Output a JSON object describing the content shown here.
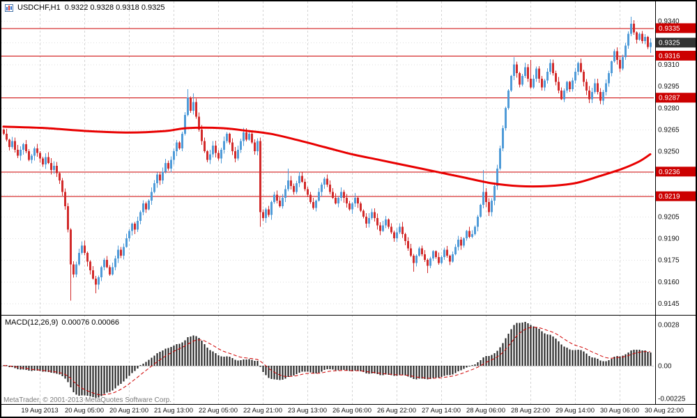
{
  "header": {
    "symbol_period": "USDCHF,H1",
    "quote_line": "0.9322 0.9328 0.9318 0.9325"
  },
  "macd": {
    "name": "MACD(12,26,9)",
    "values": "0.00076 0.00066"
  },
  "footer": {
    "copyright": "MetaTrader, © 2001-2013 MetaQuotes Software Corp."
  },
  "colors": {
    "up": "#4f9bd8",
    "down": "#d22a2a",
    "ma": "#e80000",
    "level_line": "#cc0000",
    "grid": "#d4d4d4",
    "histogram": "#1a1a1a",
    "signal": "#d00000",
    "level_tag_bg": "#cc0000",
    "current_tag_bg": "#333333",
    "axis_text": "#111111",
    "border": "#000000"
  },
  "chart_data": [
    {
      "type": "candlestick",
      "symbol": "USDCHF",
      "timeframe": "H1",
      "current_ohlc": {
        "open": 0.9322,
        "high": 0.9328,
        "low": 0.9318,
        "close": 0.9325
      },
      "ylim": [
        0.9145,
        0.934
      ],
      "grid_step": 0.0015,
      "y_grid_values": [
        0.934,
        0.9325,
        0.931,
        0.9295,
        0.928,
        0.9265,
        0.925,
        0.9235,
        0.922,
        0.9205,
        0.919,
        0.9175,
        0.916,
        0.9145
      ],
      "y_axis_labels": [
        "0.9340",
        "0.9310",
        "0.9295",
        "0.9280",
        "0.9265",
        "0.9250",
        "0.9205",
        "0.9190",
        "0.9175",
        "0.9160",
        "0.9145"
      ],
      "level_lines": [
        {
          "value": 0.9335,
          "label": "0.9335"
        },
        {
          "value": 0.9316,
          "label": "0.9316"
        },
        {
          "value": 0.9287,
          "label": "0.9287"
        },
        {
          "value": 0.9236,
          "label": "0.9236"
        },
        {
          "value": 0.9219,
          "label": "0.9219"
        }
      ],
      "current_price_tag": {
        "value": 0.9325,
        "label": "0.9325"
      },
      "first_open": 0.9265,
      "closes": [
        0.9262,
        0.9258,
        0.9253,
        0.9257,
        0.9251,
        0.9247,
        0.9251,
        0.9255,
        0.925,
        0.9244,
        0.9247,
        0.9252,
        0.9249,
        0.9245,
        0.9241,
        0.9246,
        0.9242,
        0.9237,
        0.924,
        0.9235,
        0.923,
        0.9222,
        0.9212,
        0.9196,
        0.9172,
        0.9165,
        0.9172,
        0.918,
        0.9185,
        0.918,
        0.9174,
        0.9168,
        0.9162,
        0.9158,
        0.9163,
        0.917,
        0.9175,
        0.917,
        0.9165,
        0.917,
        0.9176,
        0.9182,
        0.9178,
        0.9184,
        0.919,
        0.9195,
        0.92,
        0.9196,
        0.9202,
        0.9208,
        0.9214,
        0.921,
        0.9216,
        0.9222,
        0.9228,
        0.9234,
        0.923,
        0.9236,
        0.9242,
        0.9238,
        0.9244,
        0.925,
        0.9256,
        0.9252,
        0.9262,
        0.9275,
        0.9287,
        0.9278,
        0.9284,
        0.9274,
        0.9265,
        0.9257,
        0.925,
        0.9244,
        0.9248,
        0.9254,
        0.9249,
        0.9245,
        0.9251,
        0.9257,
        0.9262,
        0.9256,
        0.925,
        0.9245,
        0.9251,
        0.9257,
        0.9263,
        0.9258,
        0.9262,
        0.9256,
        0.925,
        0.9257,
        0.9208,
        0.9204,
        0.921,
        0.9206,
        0.9215,
        0.922,
        0.9216,
        0.9212,
        0.9218,
        0.9224,
        0.923,
        0.9226,
        0.9222,
        0.9228,
        0.9233,
        0.9229,
        0.9224,
        0.922,
        0.9215,
        0.9211,
        0.9216,
        0.9222,
        0.9227,
        0.9231,
        0.9227,
        0.9222,
        0.9218,
        0.9214,
        0.9218,
        0.9222,
        0.9218,
        0.9214,
        0.921,
        0.9214,
        0.9218,
        0.9214,
        0.9209,
        0.9205,
        0.92,
        0.9204,
        0.9208,
        0.9204,
        0.9199,
        0.9195,
        0.9199,
        0.9203,
        0.9198,
        0.9194,
        0.919,
        0.9194,
        0.9198,
        0.9193,
        0.9188,
        0.9183,
        0.9178,
        0.9173,
        0.9178,
        0.9183,
        0.9179,
        0.9175,
        0.9171,
        0.9176,
        0.9181,
        0.9177,
        0.9173,
        0.9177,
        0.9182,
        0.9178,
        0.9174,
        0.9179,
        0.9184,
        0.9189,
        0.9185,
        0.919,
        0.9195,
        0.9191,
        0.9193,
        0.9198,
        0.9205,
        0.9213,
        0.9222,
        0.9215,
        0.9208,
        0.9216,
        0.9226,
        0.9238,
        0.9252,
        0.9266,
        0.928,
        0.9292,
        0.9302,
        0.931,
        0.9304,
        0.9296,
        0.9302,
        0.9308,
        0.93,
        0.9294,
        0.93,
        0.9307,
        0.93,
        0.9294,
        0.9299,
        0.9305,
        0.9311,
        0.9304,
        0.9298,
        0.9292,
        0.9286,
        0.9292,
        0.9298,
        0.9293,
        0.9299,
        0.9305,
        0.9311,
        0.9305,
        0.9298,
        0.9292,
        0.9286,
        0.9291,
        0.9297,
        0.9291,
        0.9285,
        0.9291,
        0.9297,
        0.9304,
        0.9312,
        0.9319,
        0.9313,
        0.9307,
        0.9315,
        0.9323,
        0.9331,
        0.9338,
        0.9332,
        0.9327,
        0.9331,
        0.9326,
        0.9329,
        0.9322,
        0.9325
      ],
      "wick_overrides": [
        {
          "i": 24,
          "low": 0.9147
        },
        {
          "i": 33,
          "low": 0.9152
        },
        {
          "i": 66,
          "high": 0.9293
        },
        {
          "i": 68,
          "high": 0.929
        },
        {
          "i": 92,
          "low": 0.9198
        },
        {
          "i": 102,
          "high": 0.9238
        },
        {
          "i": 147,
          "low": 0.9167
        },
        {
          "i": 152,
          "low": 0.9166
        },
        {
          "i": 172,
          "high": 0.9237
        },
        {
          "i": 183,
          "high": 0.9315
        },
        {
          "i": 189,
          "high": 0.9313
        },
        {
          "i": 225,
          "high": 0.9343
        },
        {
          "i": 232,
          "high": 0.9328,
          "low": 0.9318
        }
      ],
      "ma_line": {
        "name": "moving-average",
        "points": [
          [
            0,
            0.9267
          ],
          [
            15,
            0.9266
          ],
          [
            30,
            0.9264
          ],
          [
            45,
            0.9263
          ],
          [
            58,
            0.9264
          ],
          [
            66,
            0.9266
          ],
          [
            78,
            0.9266
          ],
          [
            88,
            0.9264
          ],
          [
            96,
            0.9262
          ],
          [
            105,
            0.9258
          ],
          [
            115,
            0.9253
          ],
          [
            125,
            0.9248
          ],
          [
            135,
            0.9244
          ],
          [
            145,
            0.924
          ],
          [
            155,
            0.9236
          ],
          [
            165,
            0.9232
          ],
          [
            175,
            0.9228
          ],
          [
            185,
            0.9226
          ],
          [
            195,
            0.9226
          ],
          [
            205,
            0.9228
          ],
          [
            214,
            0.9233
          ],
          [
            222,
            0.9238
          ],
          [
            228,
            0.9243
          ],
          [
            232,
            0.9248
          ]
        ]
      },
      "x_labels": [
        {
          "index": 13,
          "label": "19 Aug 2013"
        },
        {
          "index": 29,
          "label": "20 Aug 05:00"
        },
        {
          "index": 45,
          "label": "20 Aug 21:00"
        },
        {
          "index": 61,
          "label": "21 Aug 13:00"
        },
        {
          "index": 77,
          "label": "22 Aug 05:00"
        },
        {
          "index": 93,
          "label": "22 Aug 21:00"
        },
        {
          "index": 109,
          "label": "23 Aug 13:00"
        },
        {
          "index": 125,
          "label": "26 Aug 06:00"
        },
        {
          "index": 141,
          "label": "26 Aug 22:00"
        },
        {
          "index": 157,
          "label": "27 Aug 14:00"
        },
        {
          "index": 173,
          "label": "28 Aug 06:00"
        },
        {
          "index": 189,
          "label": "28 Aug 22:00"
        },
        {
          "index": 205,
          "label": "29 Aug 14:00"
        },
        {
          "index": 221,
          "label": "30 Aug 06:00"
        },
        {
          "index": 237,
          "label": "30 Aug 22:00"
        }
      ]
    },
    {
      "type": "bar",
      "name": "MACD(12,26,9)",
      "macd_value": 0.00076,
      "signal_value": 0.00066,
      "params": {
        "fast_ema": 12,
        "slow_ema": 26,
        "signal_ema": 9
      },
      "derived_from": "closes of main candlestick panel",
      "ylim": [
        -0.00225,
        0.0028
      ],
      "y_axis_labels": [
        {
          "value": 0.0028,
          "label": "0.0028"
        },
        {
          "value": 0,
          "label": "0.00"
        },
        {
          "value": -0.00225,
          "label": "-0.00225"
        }
      ]
    }
  ]
}
